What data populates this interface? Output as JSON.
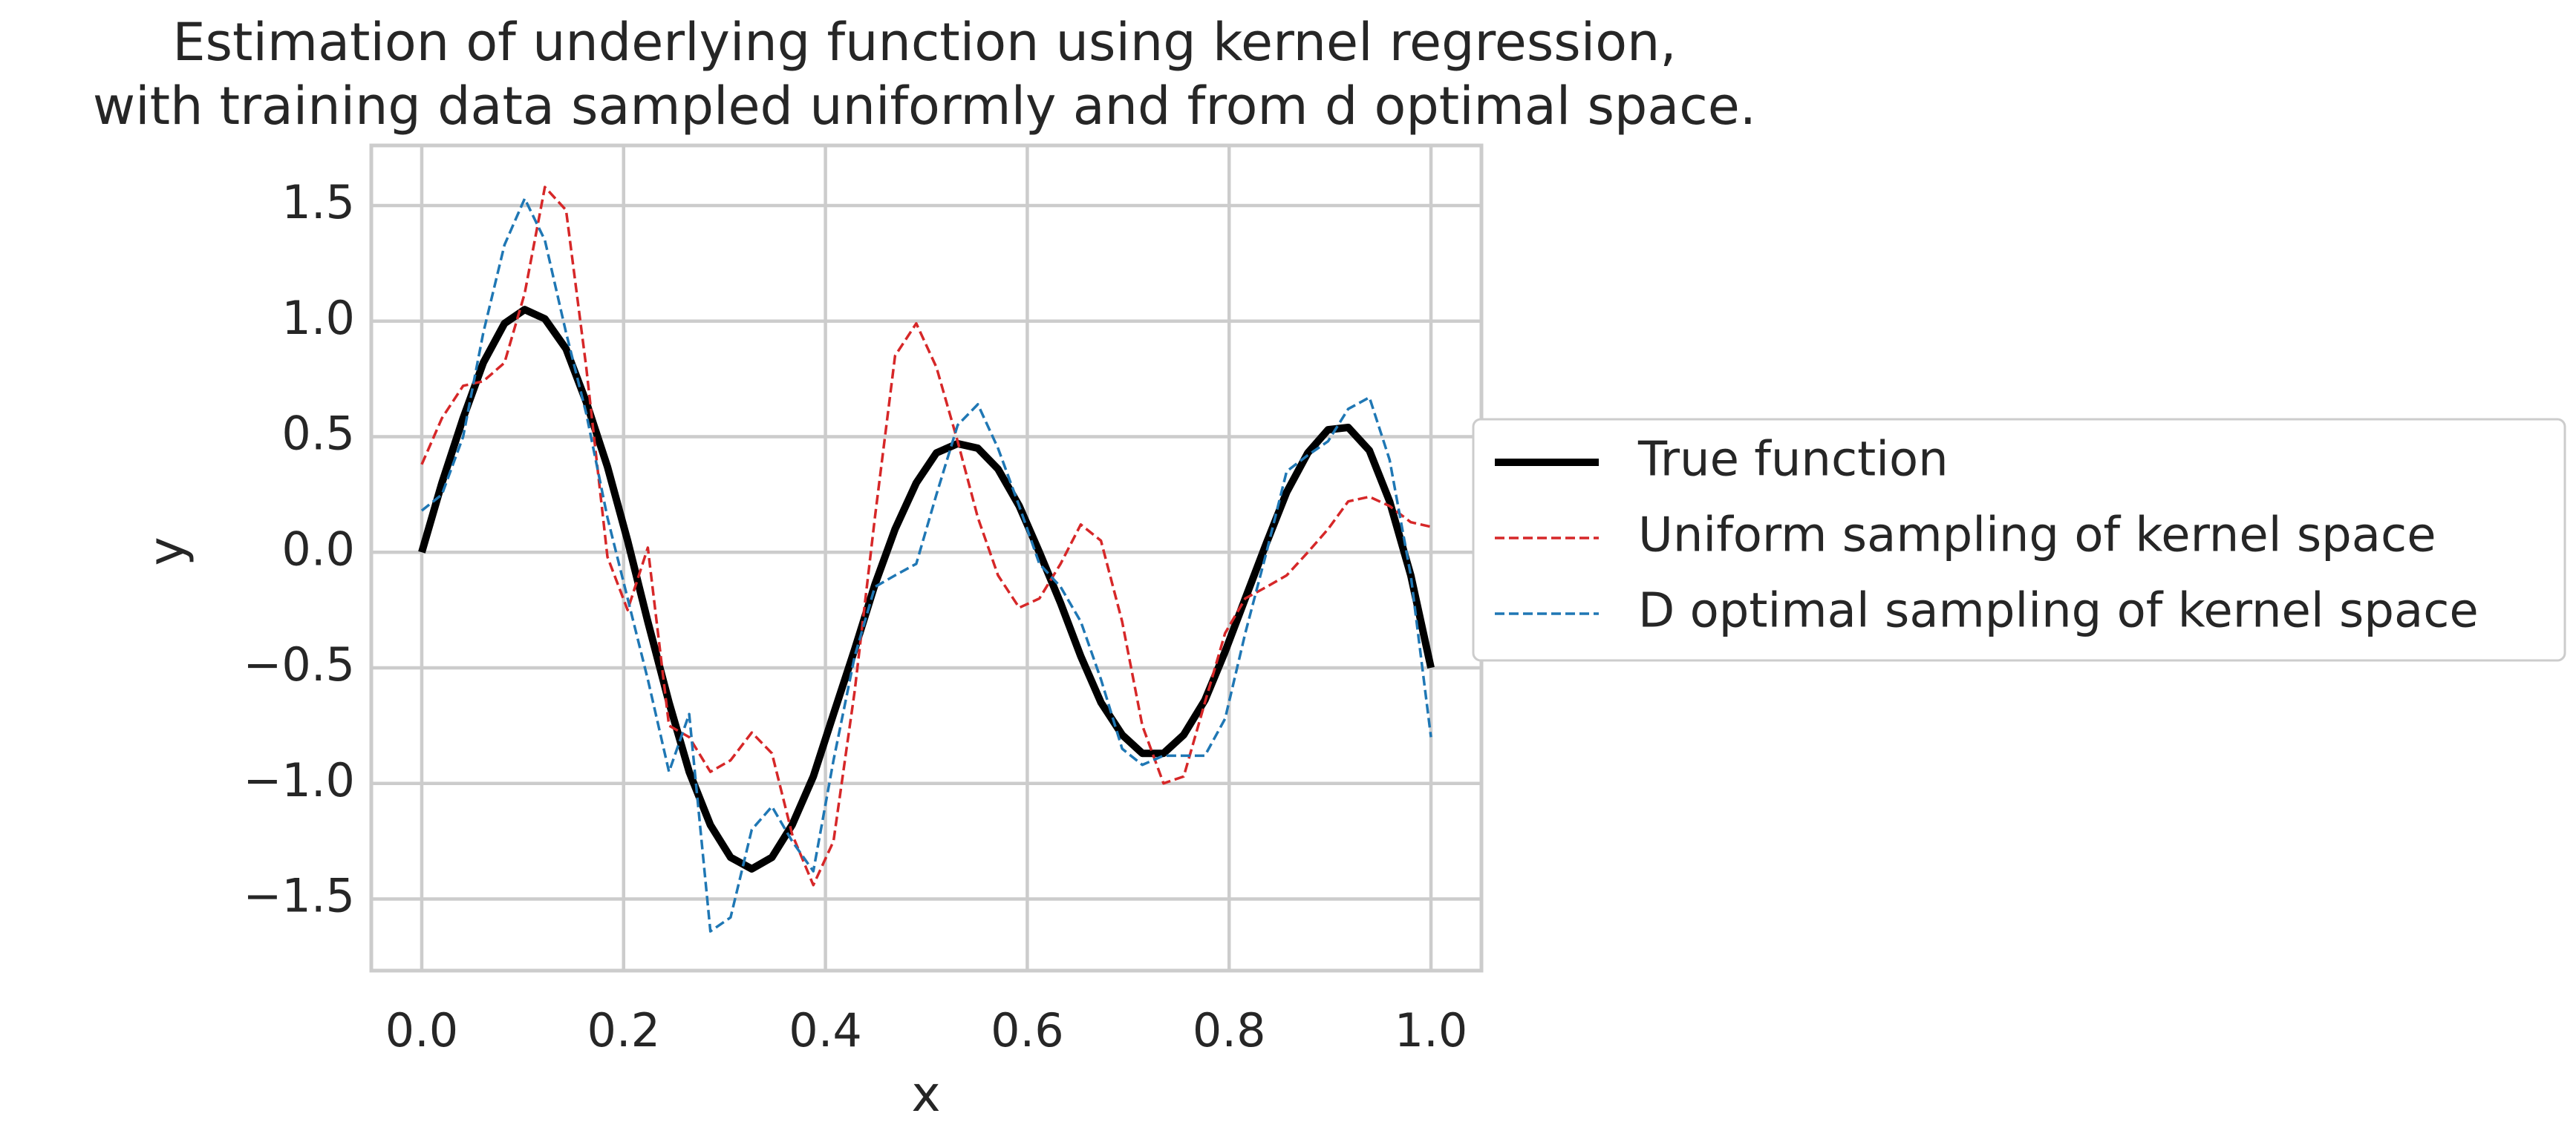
{
  "chart_data": {
    "type": "line",
    "title": "Estimation of underlying function using kernel regression,\nwith training data sampled uniformly and from d optimal space.",
    "x_label": "x",
    "y_label": "y",
    "x": [
      0,
      0.02,
      0.041,
      0.061,
      0.082,
      0.102,
      0.122,
      0.143,
      0.163,
      0.184,
      0.204,
      0.224,
      0.245,
      0.265,
      0.286,
      0.306,
      0.327,
      0.347,
      0.367,
      0.388,
      0.408,
      0.429,
      0.449,
      0.469,
      0.49,
      0.51,
      0.531,
      0.551,
      0.571,
      0.592,
      0.612,
      0.633,
      0.653,
      0.673,
      0.694,
      0.714,
      0.735,
      0.755,
      0.776,
      0.796,
      0.816,
      0.837,
      0.857,
      0.878,
      0.898,
      0.918,
      0.939,
      0.959,
      0.98,
      1.0
    ],
    "series": [
      {
        "name": "True function",
        "color": "#000000",
        "style": "solid",
        "values": [
          0,
          0.3,
          0.58,
          0.82,
          0.99,
          1.05,
          1.01,
          0.88,
          0.65,
          0.37,
          0.05,
          -0.3,
          -0.65,
          -0.95,
          -1.18,
          -1.32,
          -1.37,
          -1.32,
          -1.18,
          -0.97,
          -0.7,
          -0.42,
          -0.14,
          0.1,
          0.3,
          0.43,
          0.47,
          0.45,
          0.36,
          0.2,
          0.0,
          -0.22,
          -0.45,
          -0.65,
          -0.79,
          -0.87,
          -0.87,
          -0.79,
          -0.64,
          -0.43,
          -0.2,
          0.04,
          0.26,
          0.43,
          0.53,
          0.54,
          0.44,
          0.22,
          -0.1,
          -0.5
        ]
      },
      {
        "name": "Uniform sampling of kernel space",
        "color": "#d62728",
        "style": "dashed",
        "values": [
          0.38,
          0.58,
          0.72,
          0.74,
          0.82,
          1.12,
          1.58,
          1.48,
          0.8,
          -0.02,
          -0.25,
          0.02,
          -0.75,
          -0.8,
          -0.95,
          -0.9,
          -0.78,
          -0.87,
          -1.22,
          -1.44,
          -1.25,
          -0.6,
          0.15,
          0.85,
          0.99,
          0.8,
          0.48,
          0.15,
          -0.1,
          -0.24,
          -0.2,
          -0.05,
          0.12,
          0.05,
          -0.3,
          -0.75,
          -1.0,
          -0.97,
          -0.65,
          -0.35,
          -0.2,
          -0.15,
          -0.1,
          0.0,
          0.1,
          0.22,
          0.24,
          0.2,
          0.13,
          0.11
        ]
      },
      {
        "name": "D optimal sampling of kernel space",
        "color": "#1f77b4",
        "style": "dashed",
        "values": [
          0.18,
          0.25,
          0.5,
          0.95,
          1.33,
          1.53,
          1.35,
          0.95,
          0.6,
          0.15,
          -0.2,
          -0.55,
          -0.95,
          -0.7,
          -1.64,
          -1.58,
          -1.2,
          -1.1,
          -1.25,
          -1.38,
          -0.9,
          -0.45,
          -0.15,
          -0.1,
          -0.05,
          0.25,
          0.55,
          0.64,
          0.45,
          0.2,
          -0.05,
          -0.15,
          -0.3,
          -0.55,
          -0.85,
          -0.92,
          -0.88,
          -0.88,
          -0.88,
          -0.72,
          -0.35,
          0.0,
          0.35,
          0.42,
          0.48,
          0.62,
          0.67,
          0.4,
          -0.1,
          -0.8
        ]
      }
    ],
    "xlim": [
      -0.05,
      1.05
    ],
    "xticks": [
      {
        "value": 0,
        "label": "0.0"
      },
      0.2,
      0.4,
      0.6,
      0.8,
      {
        "value": 1,
        "label": "1.0"
      }
    ],
    "ylim": [
      -1.81,
      1.76
    ],
    "yticks": [
      {
        "value": -1.5,
        "label": "−1.5"
      },
      {
        "value": -1,
        "label": "−1.0"
      },
      {
        "value": -0.5,
        "label": "−0.5"
      },
      {
        "value": 0,
        "label": "0.0"
      },
      0.5,
      {
        "value": 1,
        "label": "1.0"
      },
      1.5
    ],
    "grid": true,
    "legend": "right"
  }
}
